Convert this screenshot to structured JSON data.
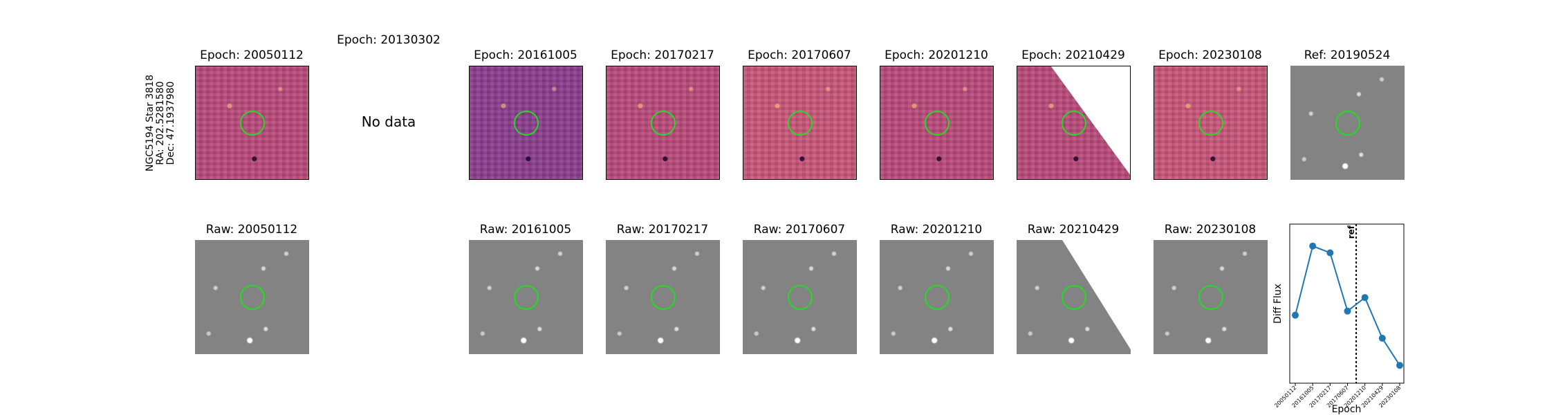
{
  "row_label": {
    "line1": "NGC5194 Star 3818",
    "line2": "RA: 202.5281580",
    "line3": "Dec: 47.1937980"
  },
  "no_data_title": "Epoch: 20130302",
  "no_data_text": "No data",
  "epoch_titles": [
    "Epoch: 20050112",
    "Epoch: 20161005",
    "Epoch: 20170217",
    "Epoch: 20170607",
    "Epoch: 20201210",
    "Epoch: 20210429",
    "Epoch: 20230108"
  ],
  "ref_title": "Ref: 20190524",
  "raw_titles": [
    "Raw: 20050112",
    "Raw: 20161005",
    "Raw: 20170217",
    "Raw: 20170607",
    "Raw: 20201210",
    "Raw: 20210429",
    "Raw: 20230108"
  ],
  "chart_data": {
    "type": "line",
    "categories": [
      "20050112",
      "20161005",
      "20170217",
      "20170607",
      "20201210",
      "20210429",
      "20230108"
    ],
    "values": [
      0.42,
      0.93,
      0.88,
      0.45,
      0.55,
      0.25,
      0.05
    ],
    "ylim": [
      0,
      1
    ],
    "xlabel": "Epoch",
    "ylabel": "Diff Flux",
    "ref_label": "ref",
    "ref_position": 3.5,
    "line_color": "#1f77b4",
    "grid": false
  }
}
